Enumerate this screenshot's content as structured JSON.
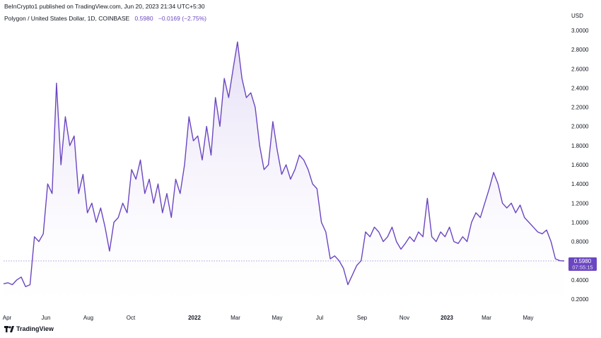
{
  "header": {
    "publish_line": "BeInCrypto1 published on TradingView.com, Jun 20, 2023 21:34 UTC+5:30",
    "symbol": "Polygon / United States Dollar, 1D, COINBASE",
    "price": "0.5980",
    "change": "−0.0169 (−2.75%)",
    "currency": "USD"
  },
  "price_badge": {
    "price": "0.5980",
    "countdown": "07:55:15"
  },
  "footer": {
    "brand": "TradingView",
    "icon": "tradingview-logo-icon"
  },
  "colors": {
    "line": "#6b46c1",
    "fill_top": "#e4dcf5",
    "badge": "#6b46c1"
  },
  "chart_data": {
    "type": "area",
    "title": "Polygon / United States Dollar, 1D, COINBASE",
    "xlabel": "",
    "ylabel": "",
    "ylim": [
      0.1,
      3.1
    ],
    "y_ticks": [
      "3.0000",
      "2.8000",
      "2.6000",
      "2.4000",
      "2.2000",
      "2.0000",
      "1.8000",
      "1.6000",
      "1.4000",
      "1.2000",
      "1.0000",
      "0.8000",
      "0.6000",
      "0.4000",
      "0.2000"
    ],
    "x_ticks": [
      "Apr",
      "Jun",
      "Aug",
      "Oct",
      "2022",
      "Mar",
      "May",
      "Jul",
      "Sep",
      "Nov",
      "2023",
      "Mar",
      "May"
    ],
    "x_ticks_bold": [
      false,
      false,
      false,
      false,
      true,
      false,
      false,
      false,
      false,
      false,
      true,
      false,
      false
    ],
    "grid": false,
    "last_price_line": 0.598,
    "series": [
      {
        "values": [
          0.36,
          0.37,
          0.35,
          0.4,
          0.43,
          0.33,
          0.35,
          0.85,
          0.8,
          0.88,
          1.4,
          1.3,
          2.45,
          1.6,
          2.1,
          1.8,
          1.9,
          1.3,
          1.5,
          1.1,
          1.2,
          1.0,
          1.15,
          0.95,
          0.7,
          1.0,
          1.05,
          1.2,
          1.1,
          1.55,
          1.45,
          1.65,
          1.3,
          1.45,
          1.2,
          1.4,
          1.1,
          1.3,
          1.05,
          1.45,
          1.3,
          1.6,
          2.1,
          1.85,
          1.9,
          1.65,
          2.0,
          1.7,
          2.3,
          2.0,
          2.5,
          2.3,
          2.6,
          2.88,
          2.5,
          2.3,
          2.35,
          2.2,
          1.8,
          1.55,
          1.6,
          2.05,
          1.75,
          1.5,
          1.6,
          1.45,
          1.55,
          1.7,
          1.65,
          1.55,
          1.4,
          1.35,
          1.0,
          0.9,
          0.62,
          0.65,
          0.6,
          0.52,
          0.35,
          0.45,
          0.55,
          0.6,
          0.9,
          0.85,
          0.95,
          0.9,
          0.8,
          0.85,
          0.95,
          0.8,
          0.72,
          0.78,
          0.85,
          0.8,
          0.9,
          0.85,
          1.25,
          0.85,
          0.8,
          0.9,
          0.85,
          0.95,
          0.8,
          0.78,
          0.85,
          0.8,
          1.0,
          1.1,
          1.05,
          1.2,
          1.35,
          1.52,
          1.4,
          1.2,
          1.15,
          1.2,
          1.1,
          1.18,
          1.05,
          1.0,
          0.95,
          0.9,
          0.88,
          0.92,
          0.8,
          0.62,
          0.6,
          0.598
        ]
      }
    ]
  }
}
